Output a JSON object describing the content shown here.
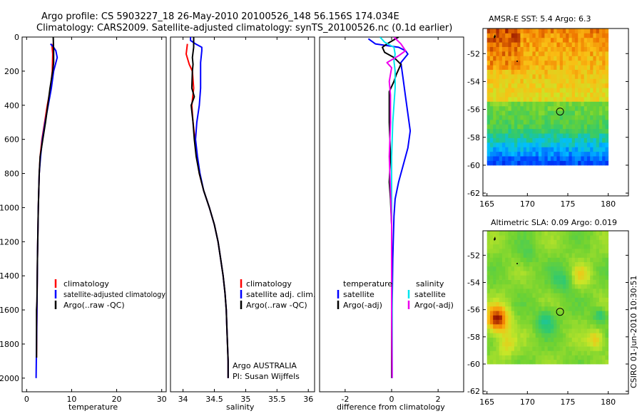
{
  "header": {
    "line1": "Argo profile: CS 5903227_18 26-May-2010 20100526_148 56.156S 174.034E",
    "line2": "Climatology: CARS2009. Satellite-adjusted climatology: synTS_20100526.nc (0.1d earlier)"
  },
  "footer_stamp": "CSIRO 01-Jun-2010 10:30:51",
  "colors": {
    "climatology": "#ff0000",
    "satellite": "#0000ff",
    "argo": "#000000",
    "salinity_sat": "#00e5ee",
    "salinity_argo": "#ee00ee"
  },
  "chart_data": [
    {
      "id": "temperature",
      "type": "line",
      "xlabel": "temperature",
      "xlim": [
        -1,
        31
      ],
      "xticks": [
        "0",
        "10",
        "20",
        "30"
      ],
      "xtick_values": [
        0,
        10,
        20,
        30
      ],
      "ylim": [
        0,
        2080
      ],
      "yticks": [
        "0",
        "200",
        "400",
        "600",
        "800",
        "1000",
        "1200",
        "1400",
        "1600",
        "1800",
        "2000"
      ],
      "ytick_values": [
        0,
        200,
        400,
        600,
        800,
        1000,
        1200,
        1400,
        1600,
        1800,
        2000
      ],
      "legend": [
        "climatology",
        "satellite-adjusted climatology",
        "Argo(..raw -QC)"
      ],
      "series": [
        {
          "name": "climatology",
          "color": "#ff0000",
          "points": [
            [
              5.6,
              40
            ],
            [
              5.8,
              100
            ],
            [
              5.7,
              200
            ],
            [
              5.3,
              300
            ],
            [
              4.6,
              400
            ],
            [
              4,
              500
            ],
            [
              3.4,
              600
            ],
            [
              3,
              700
            ],
            [
              2.8,
              800
            ],
            [
              2.6,
              1000
            ],
            [
              2.4,
              1300
            ],
            [
              2.3,
              1600
            ],
            [
              2.2,
              1880
            ]
          ]
        },
        {
          "name": "satellite-adjusted climatology",
          "color": "#0000ff",
          "points": [
            [
              5.3,
              40
            ],
            [
              6,
              60
            ],
            [
              6.5,
              80
            ],
            [
              6.8,
              120
            ],
            [
              6,
              200
            ],
            [
              5.5,
              300
            ],
            [
              4.8,
              400
            ],
            [
              4.1,
              500
            ],
            [
              3.5,
              600
            ],
            [
              3.1,
              700
            ],
            [
              2.8,
              800
            ],
            [
              2.6,
              1000
            ],
            [
              2.4,
              1300
            ],
            [
              2.3,
              1600
            ],
            [
              2.1,
              2000
            ]
          ]
        },
        {
          "name": "Argo(..raw -QC)",
          "color": "#000000",
          "points": [
            [
              5.9,
              0
            ],
            [
              6,
              80
            ],
            [
              6,
              150
            ],
            [
              5.8,
              200
            ],
            [
              5.2,
              300
            ],
            [
              4.7,
              400
            ],
            [
              4.2,
              500
            ],
            [
              3.6,
              600
            ],
            [
              3,
              700
            ],
            [
              2.8,
              800
            ],
            [
              2.6,
              1000
            ],
            [
              2.4,
              1300
            ],
            [
              2.3,
              1550
            ],
            [
              2.2,
              1600
            ],
            [
              2.2,
              1880
            ]
          ]
        }
      ]
    },
    {
      "id": "salinity",
      "type": "line",
      "xlabel": "salinity",
      "xlim": [
        33.8,
        36.1
      ],
      "xticks": [
        "34",
        "34.5",
        "35",
        "35.5",
        "36"
      ],
      "xtick_values": [
        34,
        34.5,
        35,
        35.5,
        36
      ],
      "ylim": [
        0,
        2080
      ],
      "yticks": [],
      "legend": [
        "climatology",
        "satellite adj. clim.",
        "Argo(..raw -QC)"
      ],
      "annotation": [
        "Argo AUSTRALIA",
        "PI: Susan Wijffels"
      ],
      "series": [
        {
          "name": "climatology",
          "color": "#ff0000",
          "points": [
            [
              34.07,
              40
            ],
            [
              34.05,
              100
            ],
            [
              34.1,
              160
            ],
            [
              34.15,
              200
            ],
            [
              34.17,
              300
            ],
            [
              34.14,
              400
            ],
            [
              34.16,
              500
            ],
            [
              34.19,
              600
            ],
            [
              34.22,
              700
            ],
            [
              34.26,
              800
            ],
            [
              34.33,
              900
            ],
            [
              34.42,
              1000
            ],
            [
              34.5,
              1100
            ],
            [
              34.56,
              1200
            ],
            [
              34.6,
              1300
            ],
            [
              34.64,
              1400
            ],
            [
              34.67,
              1500
            ],
            [
              34.69,
              1600
            ],
            [
              34.7,
              1700
            ],
            [
              34.71,
              1800
            ],
            [
              34.72,
              1900
            ],
            [
              34.72,
              2000
            ]
          ]
        },
        {
          "name": "satellite adj. clim.",
          "color": "#0000ff",
          "points": [
            [
              34.12,
              0
            ],
            [
              34.12,
              20
            ],
            [
              34.2,
              40
            ],
            [
              34.3,
              60
            ],
            [
              34.3,
              80
            ],
            [
              34.28,
              150
            ],
            [
              34.28,
              300
            ],
            [
              34.26,
              400
            ],
            [
              34.22,
              500
            ],
            [
              34.2,
              600
            ],
            [
              34.23,
              700
            ],
            [
              34.27,
              800
            ],
            [
              34.33,
              900
            ],
            [
              34.42,
              1000
            ],
            [
              34.5,
              1100
            ],
            [
              34.56,
              1200
            ],
            [
              34.6,
              1300
            ],
            [
              34.64,
              1400
            ],
            [
              34.67,
              1500
            ],
            [
              34.69,
              1600
            ],
            [
              34.7,
              1700
            ],
            [
              34.71,
              1800
            ],
            [
              34.72,
              1900
            ],
            [
              34.72,
              2000
            ]
          ]
        },
        {
          "name": "Argo(..raw -QC)",
          "color": "#000000",
          "points": [
            [
              34.17,
              0
            ],
            [
              34.17,
              60
            ],
            [
              34.15,
              120
            ],
            [
              34.16,
              160
            ],
            [
              34.15,
              200
            ],
            [
              34.14,
              300
            ],
            [
              34.18,
              350
            ],
            [
              34.13,
              400
            ],
            [
              34.16,
              500
            ],
            [
              34.18,
              600
            ],
            [
              34.21,
              700
            ],
            [
              34.26,
              800
            ],
            [
              34.33,
              900
            ],
            [
              34.42,
              1000
            ],
            [
              34.5,
              1100
            ],
            [
              34.56,
              1200
            ],
            [
              34.6,
              1300
            ],
            [
              34.64,
              1400
            ],
            [
              34.67,
              1500
            ],
            [
              34.69,
              1600
            ],
            [
              34.7,
              1700
            ],
            [
              34.71,
              1800
            ],
            [
              34.72,
              1900
            ],
            [
              34.72,
              2000
            ]
          ]
        }
      ]
    },
    {
      "id": "difference",
      "type": "line",
      "xlabel": "difference from climatology",
      "xlim": [
        -3.1,
        3.1
      ],
      "xticks": [
        "-2",
        "0",
        "2"
      ],
      "xtick_values": [
        -2,
        0,
        2
      ],
      "ylim": [
        0,
        2080
      ],
      "yticks": [],
      "legend_titles": [
        "temperature",
        "salinity"
      ],
      "legend_left": [
        "satellite",
        "Argo(-adj)"
      ],
      "legend_right": [
        "satellite",
        "Argo(-adj)"
      ],
      "series": [
        {
          "name": "temperature satellite",
          "color": "#0000ff",
          "points": [
            [
              -1,
              10
            ],
            [
              -0.7,
              40
            ],
            [
              0.3,
              60
            ],
            [
              0.6,
              80
            ],
            [
              0.7,
              100
            ],
            [
              0.4,
              150
            ],
            [
              0.5,
              250
            ],
            [
              0.6,
              350
            ],
            [
              0.7,
              450
            ],
            [
              0.8,
              550
            ],
            [
              0.7,
              650
            ],
            [
              0.5,
              750
            ],
            [
              0.3,
              850
            ],
            [
              0.15,
              950
            ],
            [
              0.1,
              1050
            ],
            [
              0.05,
              1300
            ],
            [
              0.02,
              1600
            ],
            [
              0.02,
              2000
            ]
          ]
        },
        {
          "name": "temperature Argo(-adj)",
          "color": "#000000",
          "points": [
            [
              0.3,
              0
            ],
            [
              -0.2,
              40
            ],
            [
              -0.4,
              60
            ],
            [
              -0.3,
              90
            ],
            [
              0.1,
              120
            ],
            [
              0.4,
              160
            ],
            [
              0.2,
              220
            ],
            [
              0.1,
              260
            ],
            [
              -0.1,
              320
            ],
            [
              -0.1,
              500
            ],
            [
              -0.05,
              700
            ],
            [
              -0.1,
              850
            ],
            [
              -0.05,
              950
            ],
            [
              0,
              1100
            ],
            [
              0,
              1500
            ],
            [
              0,
              2000
            ]
          ]
        },
        {
          "name": "salinity satellite",
          "color": "#00e5ee",
          "points": [
            [
              -0.5,
              0
            ],
            [
              -0.3,
              30
            ],
            [
              0.1,
              60
            ],
            [
              0.15,
              100
            ],
            [
              0.1,
              140
            ],
            [
              0.15,
              200
            ],
            [
              0.15,
              300
            ],
            [
              0.05,
              500
            ],
            [
              0,
              700
            ],
            [
              0,
              1000
            ],
            [
              0,
              1300
            ],
            [
              0.02,
              1600
            ],
            [
              0.02,
              2000
            ]
          ]
        },
        {
          "name": "salinity Argo(-adj)",
          "color": "#ee00ee",
          "points": [
            [
              0.1,
              0
            ],
            [
              0.4,
              40
            ],
            [
              0.6,
              80
            ],
            [
              0.3,
              110
            ],
            [
              -0.2,
              150
            ],
            [
              0,
              180
            ],
            [
              -0.1,
              260
            ],
            [
              -0.05,
              340
            ],
            [
              -0.05,
              500
            ],
            [
              -0.1,
              700
            ],
            [
              -0.05,
              900
            ],
            [
              0,
              1100
            ],
            [
              0,
              1600
            ],
            [
              0.02,
              2000
            ]
          ]
        }
      ]
    },
    {
      "id": "sst-map",
      "type": "heatmap",
      "title": "AMSR-E SST: 5.4 Argo: 6.3",
      "xlim": [
        164.5,
        182.5
      ],
      "ylim": [
        -62.2,
        -50.2
      ],
      "xticks": [
        "165",
        "170",
        "175",
        "180"
      ],
      "xtick_values": [
        165,
        170,
        175,
        180
      ],
      "yticks": [
        "-52",
        "-54",
        "-56",
        "-58",
        "-60",
        "-62"
      ],
      "ytick_values": [
        -52,
        -54,
        -56,
        -58,
        -60,
        -62
      ],
      "data_extent": {
        "lon": [
          165,
          180
        ],
        "lat": [
          -60,
          -50.2
        ]
      },
      "float_position": {
        "lon": 174.034,
        "lat": -56.156
      }
    },
    {
      "id": "sla-map",
      "type": "heatmap",
      "title": "Altimetric SLA: 0.09 Argo: 0.019",
      "xlim": [
        164.5,
        182.5
      ],
      "ylim": [
        -62.2,
        -50.2
      ],
      "xticks": [
        "165",
        "170",
        "175",
        "180"
      ],
      "xtick_values": [
        165,
        170,
        175,
        180
      ],
      "yticks": [
        "-52",
        "-54",
        "-56",
        "-58",
        "-60",
        "-62"
      ],
      "ytick_values": [
        -52,
        -54,
        -56,
        -58,
        -60,
        -62
      ],
      "data_extent": {
        "lon": [
          165,
          180
        ],
        "lat": [
          -60,
          -50.2
        ]
      },
      "float_position": {
        "lon": 174.034,
        "lat": -56.156
      }
    }
  ]
}
